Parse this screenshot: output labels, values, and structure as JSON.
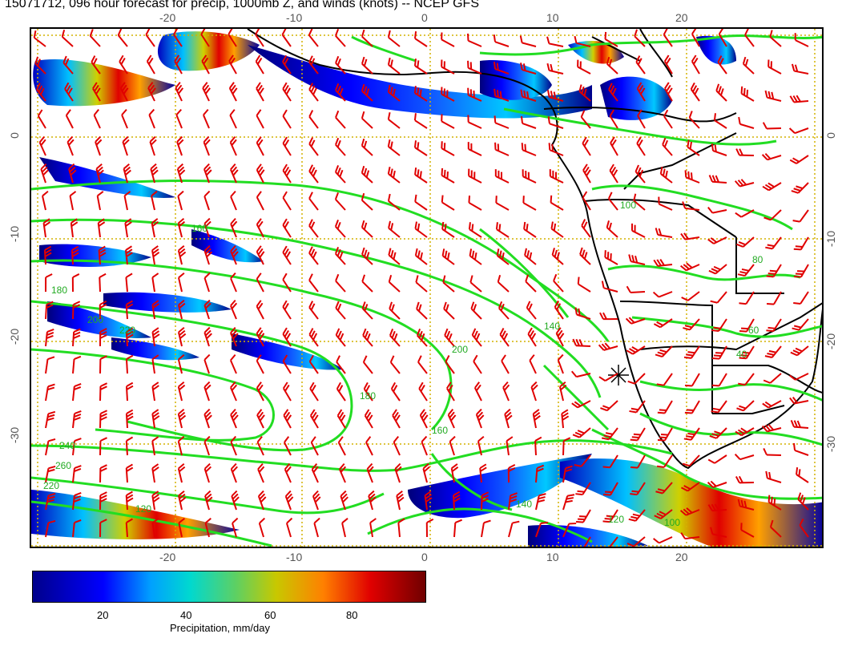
{
  "title": "15071712, 096 hour forecast for precip, 1000mb Z, and winds (knots) -- NCEP GFS",
  "lon_ticks": [
    "-20",
    "-10",
    "0",
    "10",
    "20"
  ],
  "lat_ticks": [
    "0",
    "-10",
    "-20",
    "-30"
  ],
  "contour_labels": [
    "160",
    "180",
    "200",
    "220",
    "240",
    "260",
    "220",
    "200",
    "180",
    "160",
    "140",
    "120",
    "100",
    "80",
    "60",
    "40",
    "140",
    "120",
    "100"
  ],
  "colorbar": {
    "ticks": [
      "20",
      "40",
      "60",
      "80"
    ],
    "label": "Precipitation, mm/day"
  },
  "colors": {
    "contour": "#22dd22",
    "barb": "#e00000",
    "coast": "#000000",
    "grid": "#d4b200"
  }
}
